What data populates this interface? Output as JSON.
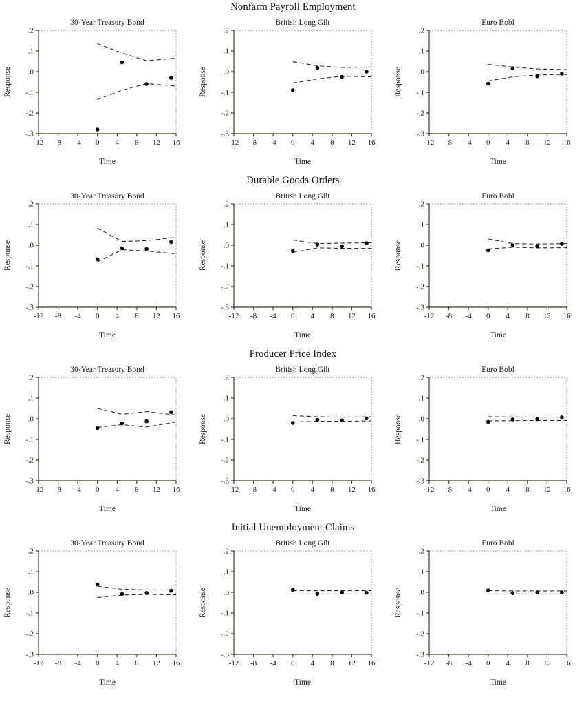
{
  "figure": {
    "background": "#ffffff"
  },
  "colors": {
    "point": "#000000",
    "band_line": "#2a2a2a",
    "frame_dark": "#3c3c2a",
    "frame_light": "#b2b2c4",
    "text": "#1a1a1a"
  },
  "chart_data": {
    "type": "scatter",
    "xlabel": "Time",
    "ylabel": "Response",
    "xlim": [
      -12,
      16
    ],
    "ylim": [
      -0.3,
      0.2
    ],
    "xtick_labels": [
      "-12",
      "-8",
      "-4",
      "0",
      "4",
      "8",
      "12",
      "16"
    ],
    "xtick_values": [
      -12,
      -8,
      -4,
      0,
      4,
      8,
      12,
      16
    ],
    "ytick_labels": [
      ".2",
      ".1",
      ".0",
      "-.1",
      "-.2",
      "-.3"
    ],
    "ytick_values": [
      0.2,
      0.1,
      0.0,
      -0.1,
      -0.2,
      -0.3
    ],
    "grid": false,
    "legend": "none",
    "point_x": [
      0,
      5,
      10,
      15
    ],
    "band_x": [
      0,
      5,
      10,
      16
    ],
    "sections": [
      {
        "title": "Nonfarm Payroll Employment",
        "charts": [
          {
            "title": "30-Year Treasury Bond",
            "points": [
              -0.28,
              0.045,
              -0.06,
              -0.03
            ],
            "upper": [
              0.135,
              0.09,
              0.053,
              0.065
            ],
            "lower": [
              -0.135,
              -0.09,
              -0.058,
              -0.07
            ]
          },
          {
            "title": "British Long Gilt",
            "points": [
              -0.09,
              0.018,
              -0.025,
              0.0
            ],
            "upper": [
              0.048,
              0.028,
              0.02,
              0.022
            ],
            "lower": [
              -0.055,
              -0.035,
              -0.022,
              -0.025
            ]
          },
          {
            "title": "Euro Bobl",
            "points": [
              -0.058,
              0.016,
              -0.022,
              -0.01
            ],
            "upper": [
              0.035,
              0.022,
              0.013,
              0.01
            ],
            "lower": [
              -0.045,
              -0.025,
              -0.016,
              -0.013
            ]
          }
        ]
      },
      {
        "title": "Durable Goods Orders",
        "charts": [
          {
            "title": "30-Year Treasury Bond",
            "points": [
              -0.068,
              -0.015,
              -0.018,
              0.015
            ],
            "upper": [
              0.082,
              0.018,
              0.022,
              0.038
            ],
            "lower": [
              -0.08,
              -0.022,
              -0.028,
              -0.042
            ]
          },
          {
            "title": "British Long Gilt",
            "points": [
              -0.028,
              0.003,
              -0.005,
              0.01
            ],
            "upper": [
              0.025,
              0.008,
              0.01,
              0.012
            ],
            "lower": [
              -0.035,
              -0.013,
              -0.015,
              -0.015
            ]
          },
          {
            "title": "Euro Bobl",
            "points": [
              -0.025,
              0.0,
              -0.005,
              0.007
            ],
            "upper": [
              0.03,
              0.008,
              0.006,
              0.008
            ],
            "lower": [
              -0.018,
              -0.01,
              -0.013,
              -0.012
            ]
          }
        ]
      },
      {
        "title": "Producer Price Index",
        "charts": [
          {
            "title": "30-Year Treasury Bond",
            "points": [
              -0.045,
              -0.022,
              -0.012,
              0.032
            ],
            "upper": [
              0.05,
              0.022,
              0.035,
              0.018
            ],
            "lower": [
              -0.042,
              -0.028,
              -0.04,
              -0.015
            ]
          },
          {
            "title": "British Long Gilt",
            "points": [
              -0.02,
              -0.005,
              -0.008,
              0.002
            ],
            "upper": [
              0.015,
              0.01,
              0.008,
              0.01
            ],
            "lower": [
              -0.015,
              -0.012,
              -0.012,
              -0.01
            ]
          },
          {
            "title": "Euro Bobl",
            "points": [
              -0.015,
              -0.003,
              -0.002,
              0.007
            ],
            "upper": [
              0.01,
              0.009,
              0.008,
              0.008
            ],
            "lower": [
              -0.01,
              -0.009,
              -0.008,
              -0.008
            ]
          }
        ]
      },
      {
        "title": "Initial Unemployment Claims",
        "charts": [
          {
            "title": "30-Year Treasury Bond",
            "points": [
              0.038,
              -0.008,
              -0.003,
              0.008
            ],
            "upper": [
              0.03,
              0.015,
              0.012,
              0.012
            ],
            "lower": [
              -0.025,
              -0.013,
              -0.01,
              -0.012
            ]
          },
          {
            "title": "British Long Gilt",
            "points": [
              0.012,
              -0.007,
              0.0,
              -0.002
            ],
            "upper": [
              0.008,
              0.008,
              0.008,
              0.008
            ],
            "lower": [
              -0.008,
              -0.008,
              -0.008,
              -0.008
            ]
          },
          {
            "title": "Euro Bobl",
            "points": [
              0.01,
              -0.004,
              0.0,
              0.0
            ],
            "upper": [
              0.008,
              0.007,
              0.007,
              0.007
            ],
            "lower": [
              -0.008,
              -0.008,
              -0.008,
              -0.008
            ]
          }
        ]
      }
    ]
  }
}
